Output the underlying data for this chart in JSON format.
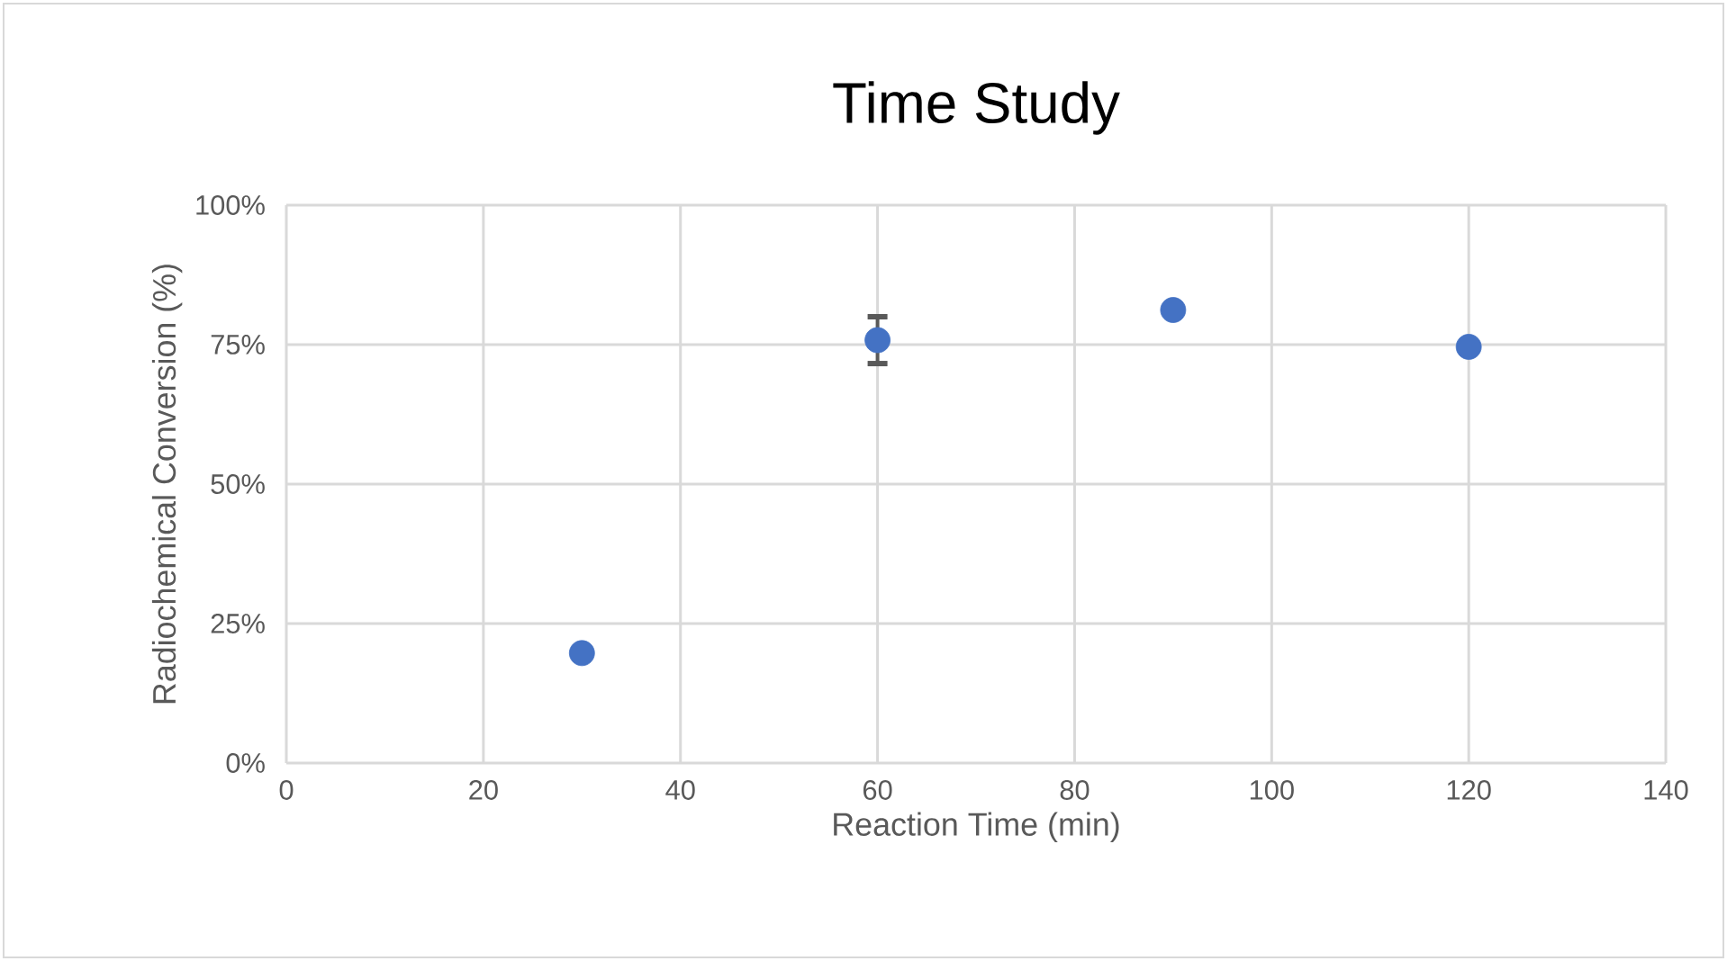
{
  "chart_data": {
    "type": "scatter",
    "title": "Time Study",
    "xlabel": "Reaction Time (min)",
    "ylabel": "Radiochemical Conversion (%)",
    "x": [
      30,
      60,
      90,
      120
    ],
    "series": [
      {
        "color": "#4472c4",
        "values": [
          19.7,
          75.8,
          81.2,
          74.6
        ],
        "errors": [
          null,
          4.2,
          null,
          null
        ]
      }
    ],
    "xlim": [
      0,
      140
    ],
    "xticks": [
      0,
      20,
      40,
      60,
      80,
      100,
      120,
      140
    ],
    "ylim": [
      0,
      100
    ],
    "yticks": [
      {
        "value": 0,
        "label": "0%"
      },
      {
        "value": 25,
        "label": "25%"
      },
      {
        "value": 50,
        "label": "50%"
      },
      {
        "value": 75,
        "label": "75%"
      },
      {
        "value": 100,
        "label": "100%"
      }
    ],
    "grid": true,
    "marker": "circle",
    "legend": false
  }
}
